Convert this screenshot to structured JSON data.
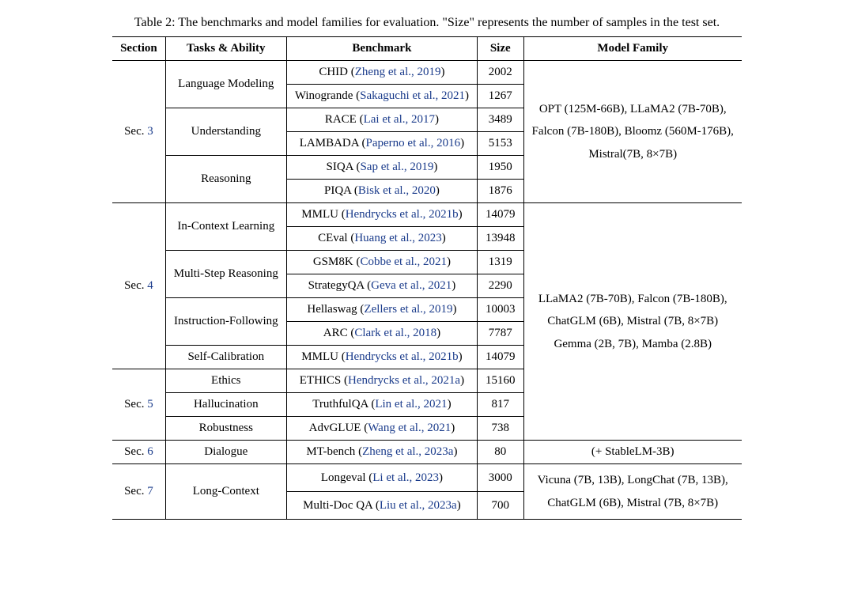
{
  "caption": "Table 2: The benchmarks and model families for evaluation. \"Size\" represents the number of samples in the test set.",
  "headers": {
    "section": "Section",
    "tasks": "Tasks & Ability",
    "benchmark": "Benchmark",
    "size": "Size",
    "model_family": "Model Family"
  },
  "sections": {
    "s3": {
      "label": "Sec. ",
      "num": "3"
    },
    "s4": {
      "label": "Sec. ",
      "num": "4"
    },
    "s5": {
      "label": "Sec. ",
      "num": "5"
    },
    "s6": {
      "label": "Sec. ",
      "num": "6"
    },
    "s7": {
      "label": "Sec. ",
      "num": "7"
    }
  },
  "tasks": {
    "lm": "Language Modeling",
    "und": "Understanding",
    "rea": "Reasoning",
    "icl": "In-Context Learning",
    "msr": "Multi-Step Reasoning",
    "if": "Instruction-Following",
    "sc": "Self-Calibration",
    "eth": "Ethics",
    "hal": "Hallucination",
    "rob": "Robustness",
    "dia": "Dialogue",
    "lc": "Long-Context"
  },
  "bench": {
    "chid": {
      "name": "CHID",
      "cite": "Zheng et al., 2019",
      "size": "2002"
    },
    "wino": {
      "name": "Winogrande",
      "cite": "Sakaguchi et al., 2021",
      "size": "1267"
    },
    "race": {
      "name": "RACE",
      "cite": "Lai et al., 2017",
      "size": "3489"
    },
    "lamb": {
      "name": "LAMBADA",
      "cite": "Paperno et al., 2016",
      "size": "5153"
    },
    "siqa": {
      "name": "SIQA",
      "cite": "Sap et al., 2019",
      "size": "1950"
    },
    "piqa": {
      "name": "PIQA",
      "cite": "Bisk et al., 2020",
      "size": "1876"
    },
    "mmlu": {
      "name": "MMLU",
      "cite": "Hendrycks et al., 2021b",
      "size": "14079"
    },
    "ceval": {
      "name": "CEval",
      "cite": "Huang et al., 2023",
      "size": "13948"
    },
    "gsm8k": {
      "name": "GSM8K",
      "cite": "Cobbe et al., 2021",
      "size": "1319"
    },
    "sqa": {
      "name": "StrategyQA",
      "cite": "Geva et al., 2021",
      "size": "2290"
    },
    "hswag": {
      "name": "Hellaswag",
      "cite": "Zellers et al., 2019",
      "size": "10003"
    },
    "arc": {
      "name": "ARC",
      "cite": "Clark et al., 2018",
      "size": "7787"
    },
    "mmlu2": {
      "name": "MMLU",
      "cite": "Hendrycks et al., 2021b",
      "size": "14079"
    },
    "ethics": {
      "name": "ETHICS",
      "cite": "Hendrycks et al., 2021a",
      "size": "15160"
    },
    "tqa": {
      "name": "TruthfulQA",
      "cite": "Lin et al., 2021",
      "size": "817"
    },
    "advglue": {
      "name": "AdvGLUE",
      "cite": "Wang et al., 2021",
      "size": "738"
    },
    "mtbench": {
      "name": "MT-bench",
      "cite": "Zheng et al., 2023a",
      "size": "80"
    },
    "longeval": {
      "name": "Longeval",
      "cite": "Li et al., 2023",
      "size": "3000"
    },
    "mdqa": {
      "name": "Multi-Doc QA",
      "cite": "Liu et al., 2023a",
      "size": "700"
    }
  },
  "model_family": {
    "mf1_l1": "OPT (125M-66B), LLaMA2 (7B-70B),",
    "mf1_l2": "Falcon (7B-180B), Bloomz (560M-176B),",
    "mf1_l3": "Mistral(7B, 8×7B)",
    "mf2_l1": "LLaMA2 (7B-70B), Falcon (7B-180B),",
    "mf2_l2": "ChatGLM (6B), Mistral (7B, 8×7B)",
    "mf2_l3": "Gemma (2B, 7B), Mamba (2.8B)",
    "mf3": "(+ StableLM-3B)",
    "mf4_l1": "Vicuna (7B, 13B), LongChat (7B, 13B),",
    "mf4_l2": "ChatGLM (6B), Mistral (7B, 8×7B)"
  },
  "style": {
    "cite_color": "#1a3b8b",
    "rule_color": "#000000",
    "font_family": "Times New Roman",
    "font_size_pt": 15
  }
}
